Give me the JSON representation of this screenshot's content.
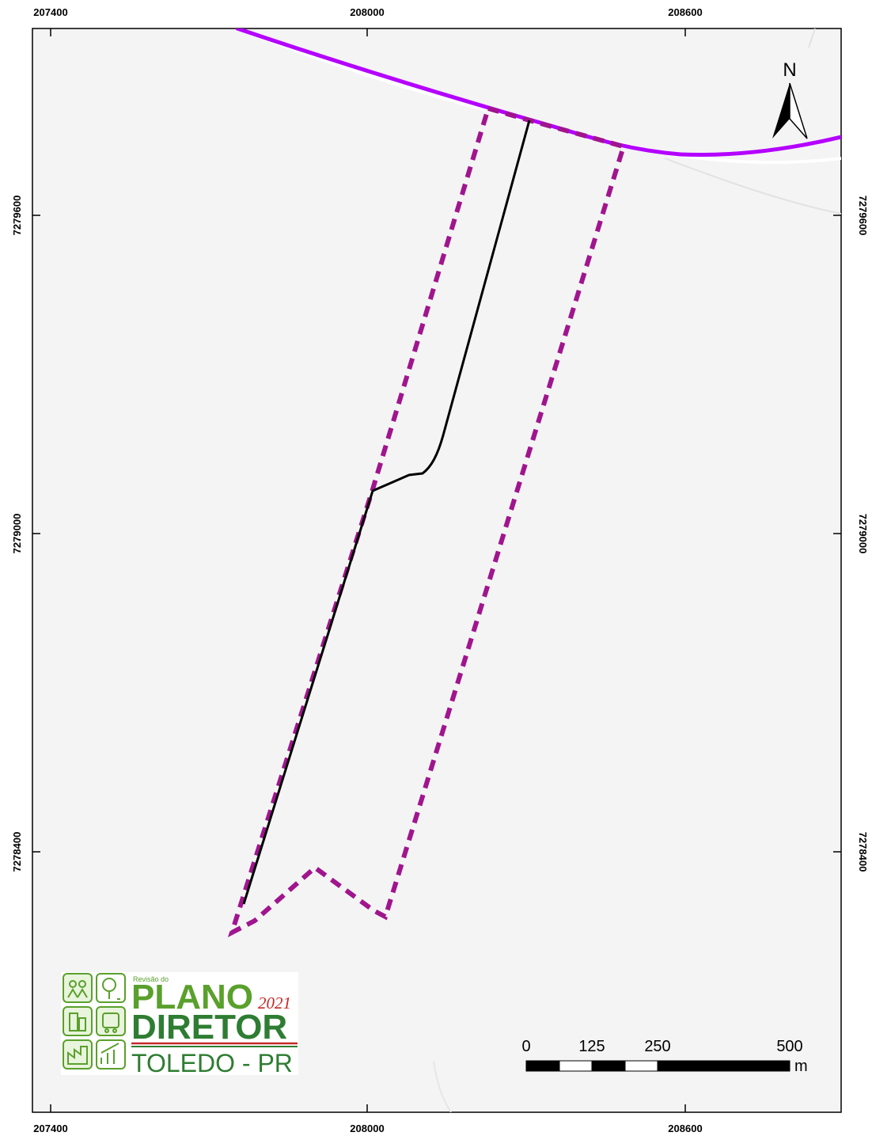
{
  "coordinates": {
    "top": [
      "207400",
      "208000",
      "208600"
    ],
    "bottom": [
      "207400",
      "208000",
      "208600"
    ],
    "left": [
      "7279600",
      "7279000",
      "7278400"
    ],
    "right": [
      "7279600",
      "7279000",
      "7278400"
    ]
  },
  "north_arrow": {
    "label": "N"
  },
  "scale_bar": {
    "ticks": [
      "0",
      "125",
      "250",
      "500"
    ],
    "unit": "m"
  },
  "logo": {
    "line1": "Revisão do",
    "line2": "PLANO",
    "year": "2021",
    "line3": "DIRETOR",
    "line4": "TOLEDO - PR"
  },
  "colors": {
    "map_background": "#f4f4f4",
    "highway": "#b400ff",
    "buffer_outline": "#a0158e",
    "road": "#000000",
    "logo_green": "#5aa02c",
    "logo_dark_green": "#2e7d32",
    "logo_red": "#c62828"
  }
}
